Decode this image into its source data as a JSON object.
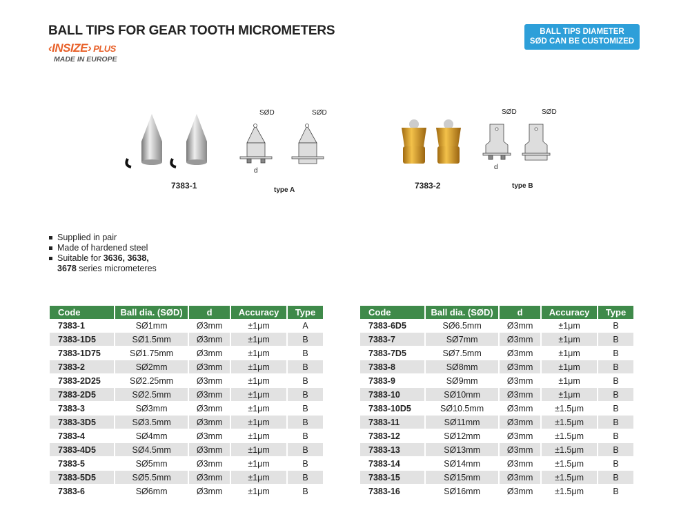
{
  "header": {
    "title": "BALL TIPS FOR GEAR TOOTH MICROMETERS",
    "brand": "INSIZE",
    "brand_suffix": "PLUS",
    "tagline": "MADE IN EUROPE",
    "badge_line1": "BALL TIPS DIAMETER",
    "badge_line2": "SØD CAN BE CUSTOMIZED"
  },
  "figures": {
    "product1": "7383-1",
    "product2": "7383-2",
    "typeA": "type A",
    "typeB": "type B",
    "sod": "SØD",
    "d": "d"
  },
  "features": [
    "Supplied in pair",
    "Made of hardened steel"
  ],
  "suitable": {
    "prefix": "Suitable for ",
    "bold1": "3636, 3638,",
    "bold2": "3678",
    "suffix": " series micrometeres"
  },
  "table": {
    "headers": [
      "Code",
      "Ball dia. (SØD)",
      "d",
      "Accuracy",
      "Type"
    ],
    "left": [
      [
        "7383-1",
        "SØ1mm",
        "Ø3mm",
        "±1μm",
        "A"
      ],
      [
        "7383-1D5",
        "SØ1.5mm",
        "Ø3mm",
        "±1μm",
        "B"
      ],
      [
        "7383-1D75",
        "SØ1.75mm",
        "Ø3mm",
        "±1μm",
        "B"
      ],
      [
        "7383-2",
        "SØ2mm",
        "Ø3mm",
        "±1μm",
        "B"
      ],
      [
        "7383-2D25",
        "SØ2.25mm",
        "Ø3mm",
        "±1μm",
        "B"
      ],
      [
        "7383-2D5",
        "SØ2.5mm",
        "Ø3mm",
        "±1μm",
        "B"
      ],
      [
        "7383-3",
        "SØ3mm",
        "Ø3mm",
        "±1μm",
        "B"
      ],
      [
        "7383-3D5",
        "SØ3.5mm",
        "Ø3mm",
        "±1μm",
        "B"
      ],
      [
        "7383-4",
        "SØ4mm",
        "Ø3mm",
        "±1μm",
        "B"
      ],
      [
        "7383-4D5",
        "SØ4.5mm",
        "Ø3mm",
        "±1μm",
        "B"
      ],
      [
        "7383-5",
        "SØ5mm",
        "Ø3mm",
        "±1μm",
        "B"
      ],
      [
        "7383-5D5",
        "SØ5.5mm",
        "Ø3mm",
        "±1μm",
        "B"
      ],
      [
        "7383-6",
        "SØ6mm",
        "Ø3mm",
        "±1μm",
        "B"
      ]
    ],
    "right": [
      [
        "7383-6D5",
        "SØ6.5mm",
        "Ø3mm",
        "±1μm",
        "B"
      ],
      [
        "7383-7",
        "SØ7mm",
        "Ø3mm",
        "±1μm",
        "B"
      ],
      [
        "7383-7D5",
        "SØ7.5mm",
        "Ø3mm",
        "±1μm",
        "B"
      ],
      [
        "7383-8",
        "SØ8mm",
        "Ø3mm",
        "±1μm",
        "B"
      ],
      [
        "7383-9",
        "SØ9mm",
        "Ø3mm",
        "±1μm",
        "B"
      ],
      [
        "7383-10",
        "SØ10mm",
        "Ø3mm",
        "±1μm",
        "B"
      ],
      [
        "7383-10D5",
        "SØ10.5mm",
        "Ø3mm",
        "±1.5μm",
        "B"
      ],
      [
        "7383-11",
        "SØ11mm",
        "Ø3mm",
        "±1.5μm",
        "B"
      ],
      [
        "7383-12",
        "SØ12mm",
        "Ø3mm",
        "±1.5μm",
        "B"
      ],
      [
        "7383-13",
        "SØ13mm",
        "Ø3mm",
        "±1.5μm",
        "B"
      ],
      [
        "7383-14",
        "SØ14mm",
        "Ø3mm",
        "±1.5μm",
        "B"
      ],
      [
        "7383-15",
        "SØ15mm",
        "Ø3mm",
        "±1.5μm",
        "B"
      ],
      [
        "7383-16",
        "SØ16mm",
        "Ø3mm",
        "±1.5μm",
        "B"
      ]
    ]
  },
  "colors": {
    "header_green": "#3f8a4a",
    "badge_blue": "#2d9fd9",
    "brand_orange": "#e8612a"
  }
}
